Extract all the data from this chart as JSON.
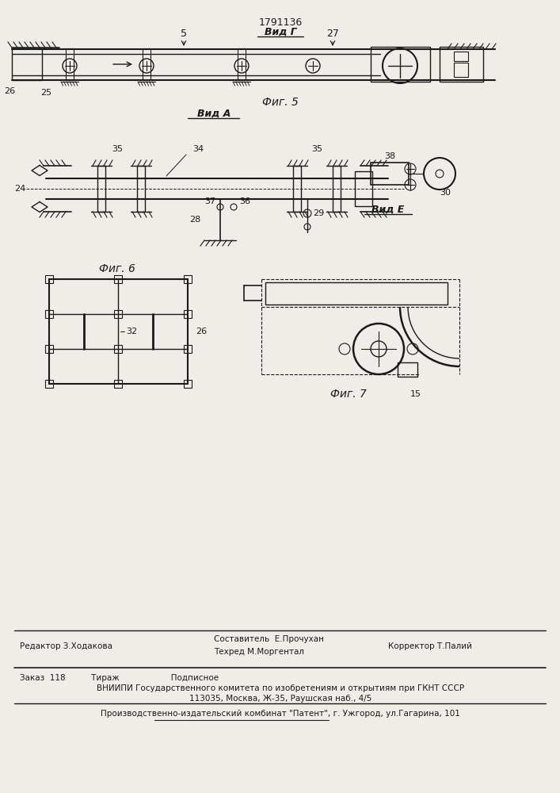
{
  "patent_number": "1791136",
  "fig5_label": "Вид Г",
  "fig5_caption": "Фиг. 5",
  "fig6_label": "Вид А",
  "fig6_caption": "Фиг. 6",
  "fig7_label": "Вид Е",
  "fig7_caption": "Фиг. 7",
  "footer_line1_left": "Редактор З.Ходакова",
  "footer_compositor1": "Составитель  Е.Прочухан",
  "footer_compositor2": "Техред М.Моргентал",
  "footer_line1_right": "Корректор Т.Палий",
  "footer_line2": "Заказ  118          Тираж                    Подписное",
  "footer_line3": "ВНИИПИ Государственного комитета по изобретениям и открытиям при ГКНТ СССР",
  "footer_line4": "113035, Москва, Ж-35, Раушская наб., 4/5",
  "footer_line5": "Производственно-издательский комбинат \"Патент\", г. Ужгород, ул.Гагарина, 101",
  "bg_color": "#f0ede8",
  "line_color": "#1a1a1a"
}
